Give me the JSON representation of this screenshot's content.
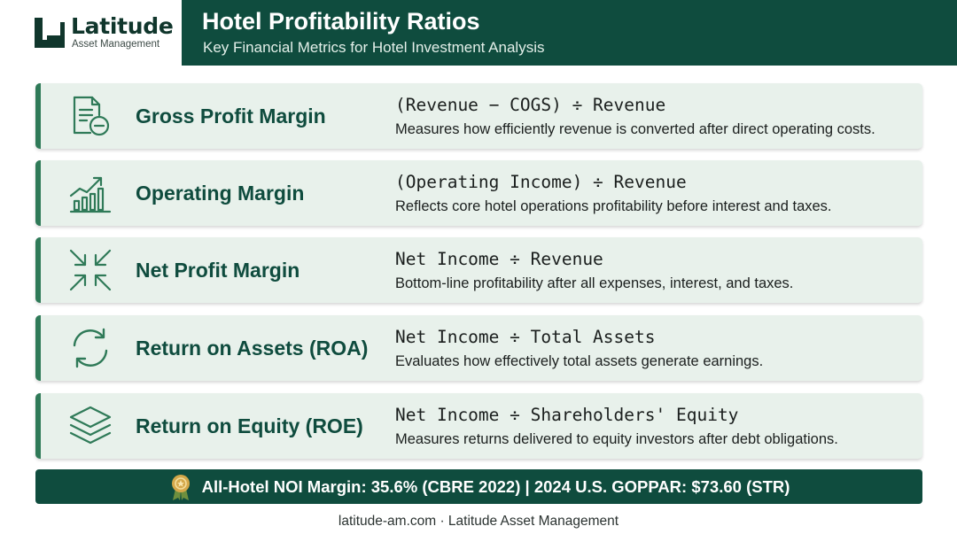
{
  "brand": {
    "name": "Latitude",
    "tagline": "Asset Management"
  },
  "header": {
    "title": "Hotel Profitability Ratios",
    "subtitle": "Key Financial Metrics for Hotel Investment Analysis"
  },
  "ratios": [
    {
      "name": "Gross Profit Margin",
      "formula": "(Revenue − COGS) ÷ Revenue",
      "description": "Measures how efficiently revenue is converted after direct operating costs.",
      "icon": "document-minus-icon"
    },
    {
      "name": "Operating Margin",
      "formula": "(Operating Income) ÷ Revenue",
      "description": "Reflects core hotel operations profitability before interest and taxes.",
      "icon": "growth-chart-icon"
    },
    {
      "name": "Net Profit Margin",
      "formula": "Net Income ÷ Revenue",
      "description": "Bottom-line profitability after all expenses, interest, and taxes.",
      "icon": "compress-arrows-icon"
    },
    {
      "name": "Return on Assets (ROA)",
      "formula": "Net Income ÷ Total Assets",
      "description": "Evaluates how effectively total assets generate earnings.",
      "icon": "refresh-cycle-icon"
    },
    {
      "name": "Return on Equity (ROE)",
      "formula": "Net Income ÷ Shareholders' Equity",
      "description": "Measures returns delivered to equity investors after debt obligations.",
      "icon": "layers-icon"
    }
  ],
  "banner": {
    "text": "All-Hotel NOI Margin: 35.6% (CBRE 2022) | 2024 U.S. GOPPAR: $73.60 (STR)",
    "icon": "award-medal-icon"
  },
  "footer": {
    "text": "latitude-am.com · Latitude Asset Management"
  },
  "colors": {
    "primary": "#0f4c3e",
    "accent": "#2f7a58",
    "card_bg": "#e8f1eb",
    "medal": "#d4a84a"
  }
}
